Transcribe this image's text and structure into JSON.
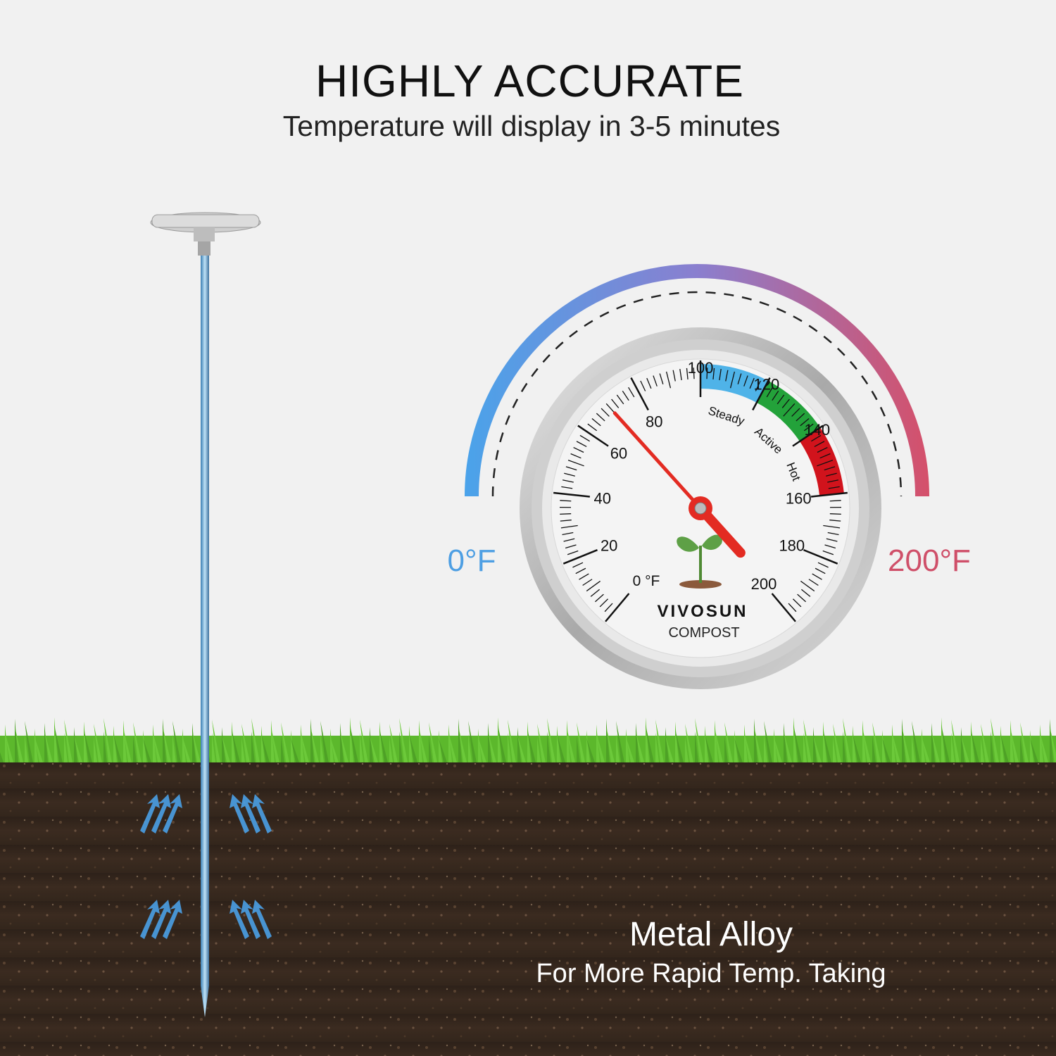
{
  "header": {
    "title": "HIGHLY ACCURATE",
    "subtitle": "Temperature will display in 3-5 minutes"
  },
  "range_labels": {
    "min": "0°F",
    "max": "200°F"
  },
  "gauge": {
    "brand": "VIVOSUN",
    "product": "COMPOST",
    "unit_label": "0 °F",
    "scale_min": 0,
    "scale_max": 200,
    "tick_labels": [
      "20",
      "40",
      "60",
      "80",
      "100",
      "120",
      "140",
      "160",
      "180",
      "200"
    ],
    "reading": 70,
    "zones": [
      {
        "label": "Steady",
        "from": 100,
        "to": 120,
        "color": "#4fb3e8"
      },
      {
        "label": "Active",
        "from": 120,
        "to": 140,
        "color": "#23a23a"
      },
      {
        "label": "Hot",
        "from": 140,
        "to": 160,
        "color": "#d1131c"
      }
    ],
    "needle_color": "#e32b22"
  },
  "feature": {
    "title": "Metal Alloy",
    "subtitle": "For More Rapid Temp. Taking"
  },
  "colors": {
    "cold": "#4e9fe3",
    "hot": "#cf4f69",
    "soil": "#3a2a20",
    "grass": "#5cb82c"
  }
}
